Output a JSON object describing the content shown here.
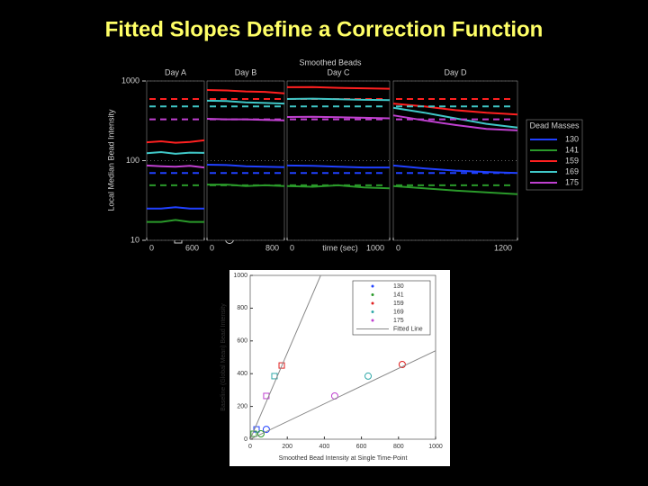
{
  "title": "Fitted Slopes Define a Correction Function",
  "chart_data": [
    {
      "type": "line",
      "title": "Smoothed Beads",
      "xlabel": "time (sec)",
      "ylabel": "Local Median Bead Intensity",
      "log_y": true,
      "ylim": [
        10,
        1000
      ],
      "yticks": [
        10,
        100,
        1000
      ],
      "grid": true,
      "legend_title": "Dead Masses",
      "legend": "right",
      "series": [
        {
          "name": "130",
          "color": "#2040ff",
          "baseline": 70
        },
        {
          "name": "141",
          "color": "#2a9a2a",
          "baseline": 49
        },
        {
          "name": "159",
          "color": "#ff2020",
          "baseline": 595
        },
        {
          "name": "169",
          "color": "#40c8c8",
          "baseline": 480
        },
        {
          "name": "175",
          "color": "#c040d0",
          "baseline": 330
        }
      ],
      "panels": [
        {
          "title": "Day A",
          "xlim": [
            0,
            600
          ],
          "xticks": [
            0,
            600
          ],
          "x": [
            0,
            150,
            300,
            450,
            600
          ],
          "values": [
            [
              25,
              25,
              26,
              25,
              25
            ],
            [
              17,
              17,
              18,
              17,
              17
            ],
            [
              170,
              175,
              168,
              172,
              180
            ],
            [
              124,
              128,
              122,
              126,
              125
            ],
            [
              87,
              85,
              84,
              86,
              82
            ]
          ]
        },
        {
          "title": "Day B",
          "xlim": [
            0,
            800
          ],
          "xticks": [
            0,
            800
          ],
          "x": [
            0,
            200,
            400,
            600,
            800
          ],
          "values": [
            [
              89,
              88,
              85,
              84,
              83
            ],
            [
              50,
              50,
              48,
              49,
              48
            ],
            [
              770,
              760,
              740,
              730,
              700
            ],
            [
              565,
              560,
              540,
              530,
              520
            ],
            [
              335,
              330,
              330,
              325,
              320
            ]
          ]
        },
        {
          "title": "Day C",
          "xlim": [
            0,
            1000
          ],
          "xticks": [
            0,
            1000
          ],
          "x": [
            0,
            250,
            500,
            750,
            1000
          ],
          "values": [
            [
              87,
              86,
              84,
              82,
              82
            ],
            [
              48,
              47,
              49,
              46,
              45
            ],
            [
              835,
              840,
              820,
              810,
              800
            ],
            [
              595,
              600,
              590,
              580,
              575
            ],
            [
              353,
              355,
              350,
              345,
              340
            ]
          ]
        },
        {
          "title": "Day D",
          "xlim": [
            0,
            1200
          ],
          "xticks": [
            0,
            1200
          ],
          "x": [
            0,
            300,
            600,
            900,
            1200
          ],
          "values": [
            [
              87,
              80,
              75,
              72,
              70
            ],
            [
              48,
              45,
              42,
              40,
              38
            ],
            [
              520,
              480,
              430,
              400,
              380
            ],
            [
              460,
              400,
              340,
              290,
              260
            ],
            [
              370,
              320,
              280,
              250,
              240
            ]
          ]
        }
      ]
    },
    {
      "type": "scatter",
      "xlabel": "Smoothed Bead Intensity at Single Time-Point",
      "ylabel": "Baseline (Global Mean) Bead Intensity",
      "xlim": [
        0,
        1000
      ],
      "ylim": [
        0,
        1000
      ],
      "xticks": [
        0,
        200,
        400,
        600,
        800,
        1000
      ],
      "yticks": [
        0,
        200,
        400,
        600,
        800,
        1000
      ],
      "legend": "upper right",
      "series": [
        {
          "name": "130",
          "color": "#2040ff",
          "x": [
            34,
            87
          ],
          "values": [
            60,
            60
          ]
        },
        {
          "name": "141",
          "color": "#2a9a2a",
          "x": [
            19,
            58
          ],
          "values": [
            33,
            33
          ]
        },
        {
          "name": "159",
          "color": "#e02020",
          "x": [
            170,
            820
          ],
          "values": [
            450,
            456
          ]
        },
        {
          "name": "169",
          "color": "#30a8a8",
          "x": [
            131,
            636
          ],
          "values": [
            385,
            385
          ]
        },
        {
          "name": "175",
          "color": "#c040d0",
          "x": [
            87,
            456
          ],
          "values": [
            264,
            264
          ]
        },
        {
          "name": "Fitted Line",
          "color": "#888888",
          "line": true,
          "x": [
            0,
            380,
            380,
            0,
            1000
          ],
          "values": [
            0,
            1000,
            null,
            0,
            540
          ]
        }
      ]
    }
  ]
}
